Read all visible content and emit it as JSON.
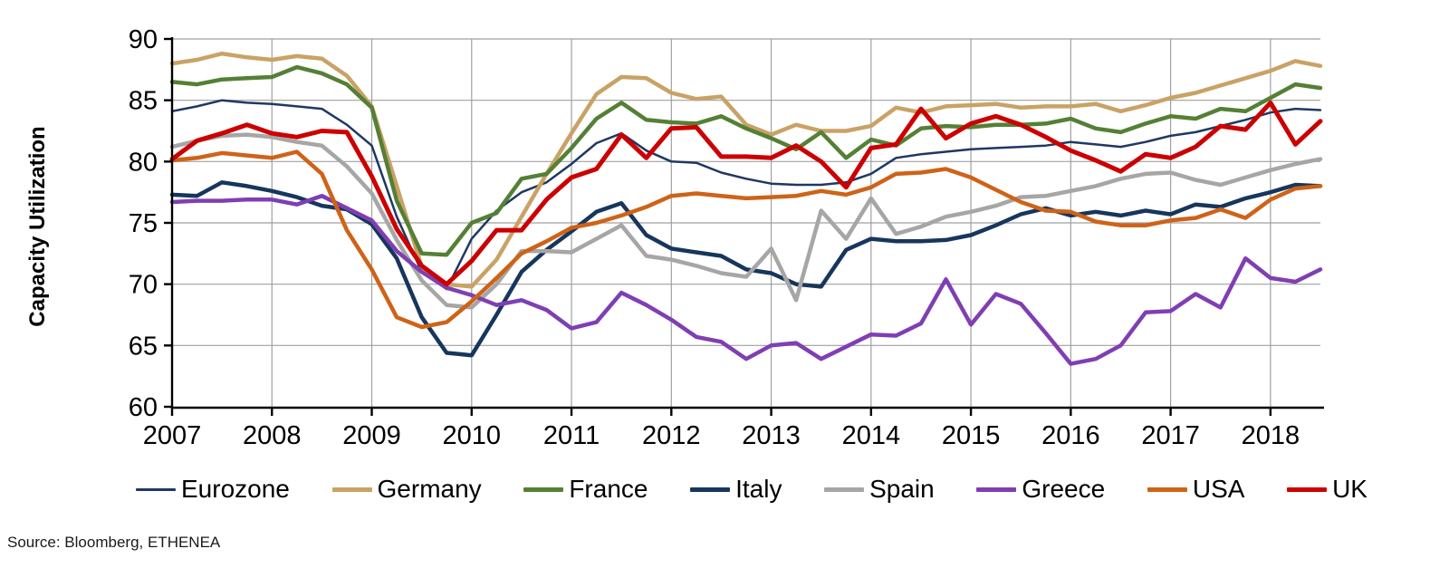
{
  "chart_data": {
    "type": "line",
    "title": "",
    "ylabel": "Capacity Utilization",
    "xlabel": "",
    "grid": true,
    "legend_position": "bottom",
    "ylim": [
      60,
      90
    ],
    "y_ticks": [
      60,
      65,
      70,
      75,
      80,
      85,
      90
    ],
    "x_tick_labels": [
      "2007",
      "2008",
      "2009",
      "2010",
      "2011",
      "2012",
      "2013",
      "2014",
      "2015",
      "2016",
      "2017",
      "2018"
    ],
    "x": [
      "2007Q1",
      "2007Q2",
      "2007Q3",
      "2007Q4",
      "2008Q1",
      "2008Q2",
      "2008Q3",
      "2008Q4",
      "2009Q1",
      "2009Q2",
      "2009Q3",
      "2009Q4",
      "2010Q1",
      "2010Q2",
      "2010Q3",
      "2010Q4",
      "2011Q1",
      "2011Q2",
      "2011Q3",
      "2011Q4",
      "2012Q1",
      "2012Q2",
      "2012Q3",
      "2012Q4",
      "2013Q1",
      "2013Q2",
      "2013Q3",
      "2013Q4",
      "2014Q1",
      "2014Q2",
      "2014Q3",
      "2014Q4",
      "2015Q1",
      "2015Q2",
      "2015Q3",
      "2015Q4",
      "2016Q1",
      "2016Q2",
      "2016Q3",
      "2016Q4",
      "2017Q1",
      "2017Q2",
      "2017Q3",
      "2017Q4",
      "2018Q1",
      "2018Q2",
      "2018Q3"
    ],
    "series": [
      {
        "name": "Eurozone",
        "color": "#1F3864",
        "width": 2.5,
        "values": [
          84.1,
          84.5,
          85.0,
          84.8,
          84.7,
          84.5,
          84.3,
          83.0,
          81.3,
          75.5,
          71.0,
          69.6,
          73.7,
          76.0,
          77.5,
          78.3,
          79.8,
          81.5,
          82.3,
          80.9,
          80.0,
          79.9,
          79.1,
          78.6,
          78.2,
          78.1,
          78.1,
          78.3,
          79.0,
          80.3,
          80.6,
          80.8,
          81.0,
          81.1,
          81.2,
          81.3,
          81.6,
          81.4,
          81.2,
          81.6,
          82.1,
          82.4,
          82.9,
          83.4,
          84.0,
          84.3,
          84.2
        ]
      },
      {
        "name": "Germany",
        "color": "#C9A265",
        "width": 4.5,
        "values": [
          88.0,
          88.3,
          88.8,
          88.5,
          88.3,
          88.6,
          88.4,
          87.0,
          84.5,
          78.0,
          71.4,
          70.0,
          69.8,
          72.0,
          75.5,
          79.0,
          82.3,
          85.5,
          86.9,
          86.8,
          85.6,
          85.1,
          85.3,
          83.0,
          82.2,
          83.0,
          82.5,
          82.5,
          82.9,
          84.4,
          84.0,
          84.5,
          84.6,
          84.7,
          84.4,
          84.5,
          84.5,
          84.7,
          84.1,
          84.6,
          85.2,
          85.6,
          86.2,
          86.8,
          87.4,
          88.2,
          87.8
        ]
      },
      {
        "name": "France",
        "color": "#548035",
        "width": 4.5,
        "values": [
          86.5,
          86.3,
          86.7,
          86.8,
          86.9,
          87.7,
          87.2,
          86.3,
          84.4,
          76.8,
          72.5,
          72.4,
          75.0,
          75.8,
          78.6,
          79.0,
          81.1,
          83.5,
          84.8,
          83.4,
          83.2,
          83.1,
          83.7,
          82.7,
          81.9,
          81.0,
          82.4,
          80.3,
          81.8,
          81.3,
          82.7,
          82.9,
          82.8,
          83.0,
          83.0,
          83.1,
          83.5,
          82.7,
          82.4,
          83.1,
          83.7,
          83.5,
          84.3,
          84.1,
          85.2,
          86.3,
          86.0
        ]
      },
      {
        "name": "Italy",
        "color": "#17365D",
        "width": 4.5,
        "values": [
          77.3,
          77.2,
          78.3,
          78.0,
          77.6,
          77.1,
          76.4,
          76.1,
          74.9,
          72.1,
          67.3,
          64.4,
          64.2,
          67.5,
          71.0,
          72.8,
          74.3,
          75.9,
          76.6,
          74.0,
          72.9,
          72.6,
          72.3,
          71.2,
          70.9,
          70.0,
          69.8,
          72.8,
          73.7,
          73.5,
          73.5,
          73.6,
          74.0,
          74.8,
          75.7,
          76.2,
          75.6,
          75.9,
          75.6,
          76.0,
          75.7,
          76.5,
          76.3,
          77.0,
          77.5,
          78.1,
          78.0
        ]
      },
      {
        "name": "Spain",
        "color": "#A6A6A6",
        "width": 4.5,
        "values": [
          81.2,
          81.7,
          82.1,
          82.2,
          82.0,
          81.6,
          81.3,
          79.6,
          77.4,
          73.6,
          70.3,
          68.3,
          68.1,
          70.0,
          72.7,
          72.7,
          72.6,
          73.7,
          74.8,
          72.3,
          72.0,
          71.5,
          70.9,
          70.6,
          72.9,
          68.7,
          76.0,
          73.7,
          77.0,
          74.1,
          74.7,
          75.5,
          75.9,
          76.4,
          77.1,
          77.2,
          77.6,
          78.0,
          78.6,
          79.0,
          79.1,
          78.5,
          78.1,
          78.7,
          79.3,
          79.8,
          80.2
        ]
      },
      {
        "name": "Greece",
        "color": "#7F3FB3",
        "width": 4.5,
        "values": [
          76.7,
          76.8,
          76.8,
          76.9,
          76.9,
          76.5,
          77.2,
          76.2,
          75.2,
          72.7,
          71.0,
          69.7,
          69.1,
          68.3,
          68.7,
          67.9,
          66.4,
          66.9,
          69.3,
          68.3,
          67.1,
          65.7,
          65.3,
          63.9,
          65.0,
          65.2,
          63.9,
          64.9,
          65.9,
          65.8,
          66.8,
          70.4,
          66.7,
          69.2,
          68.4,
          66.0,
          63.5,
          63.9,
          65.0,
          67.7,
          67.8,
          69.2,
          68.1,
          72.1,
          70.5,
          70.2,
          71.2
        ]
      },
      {
        "name": "USA",
        "color": "#CE6318",
        "width": 4.5,
        "values": [
          80.1,
          80.3,
          80.7,
          80.5,
          80.3,
          80.8,
          79.0,
          74.4,
          71.2,
          67.3,
          66.5,
          66.9,
          68.6,
          70.5,
          72.5,
          73.5,
          74.6,
          75.0,
          75.6,
          76.3,
          77.2,
          77.4,
          77.2,
          77.0,
          77.1,
          77.2,
          77.6,
          77.3,
          77.9,
          79.0,
          79.1,
          79.4,
          78.7,
          77.7,
          76.7,
          76.0,
          75.9,
          75.1,
          74.8,
          74.8,
          75.2,
          75.4,
          76.1,
          75.4,
          76.9,
          77.8,
          78.0
        ]
      },
      {
        "name": "UK",
        "color": "#CC0000",
        "width": 5,
        "values": [
          80.2,
          81.7,
          82.3,
          83.0,
          82.3,
          82.0,
          82.5,
          82.4,
          78.8,
          74.5,
          71.5,
          70.0,
          71.9,
          74.4,
          74.4,
          76.9,
          78.7,
          79.4,
          82.2,
          80.3,
          82.7,
          82.8,
          80.4,
          80.4,
          80.3,
          81.3,
          80.0,
          77.9,
          81.1,
          81.4,
          84.3,
          81.9,
          83.1,
          83.7,
          83.0,
          82.0,
          80.9,
          80.1,
          79.2,
          80.6,
          80.3,
          81.2,
          82.9,
          82.6,
          84.8,
          81.4,
          83.3
        ]
      }
    ]
  },
  "source": {
    "label": "Source: Bloomberg, ETHENEA"
  },
  "style": {
    "grid_color": "#A0A0A0",
    "axis_color": "#000000"
  }
}
